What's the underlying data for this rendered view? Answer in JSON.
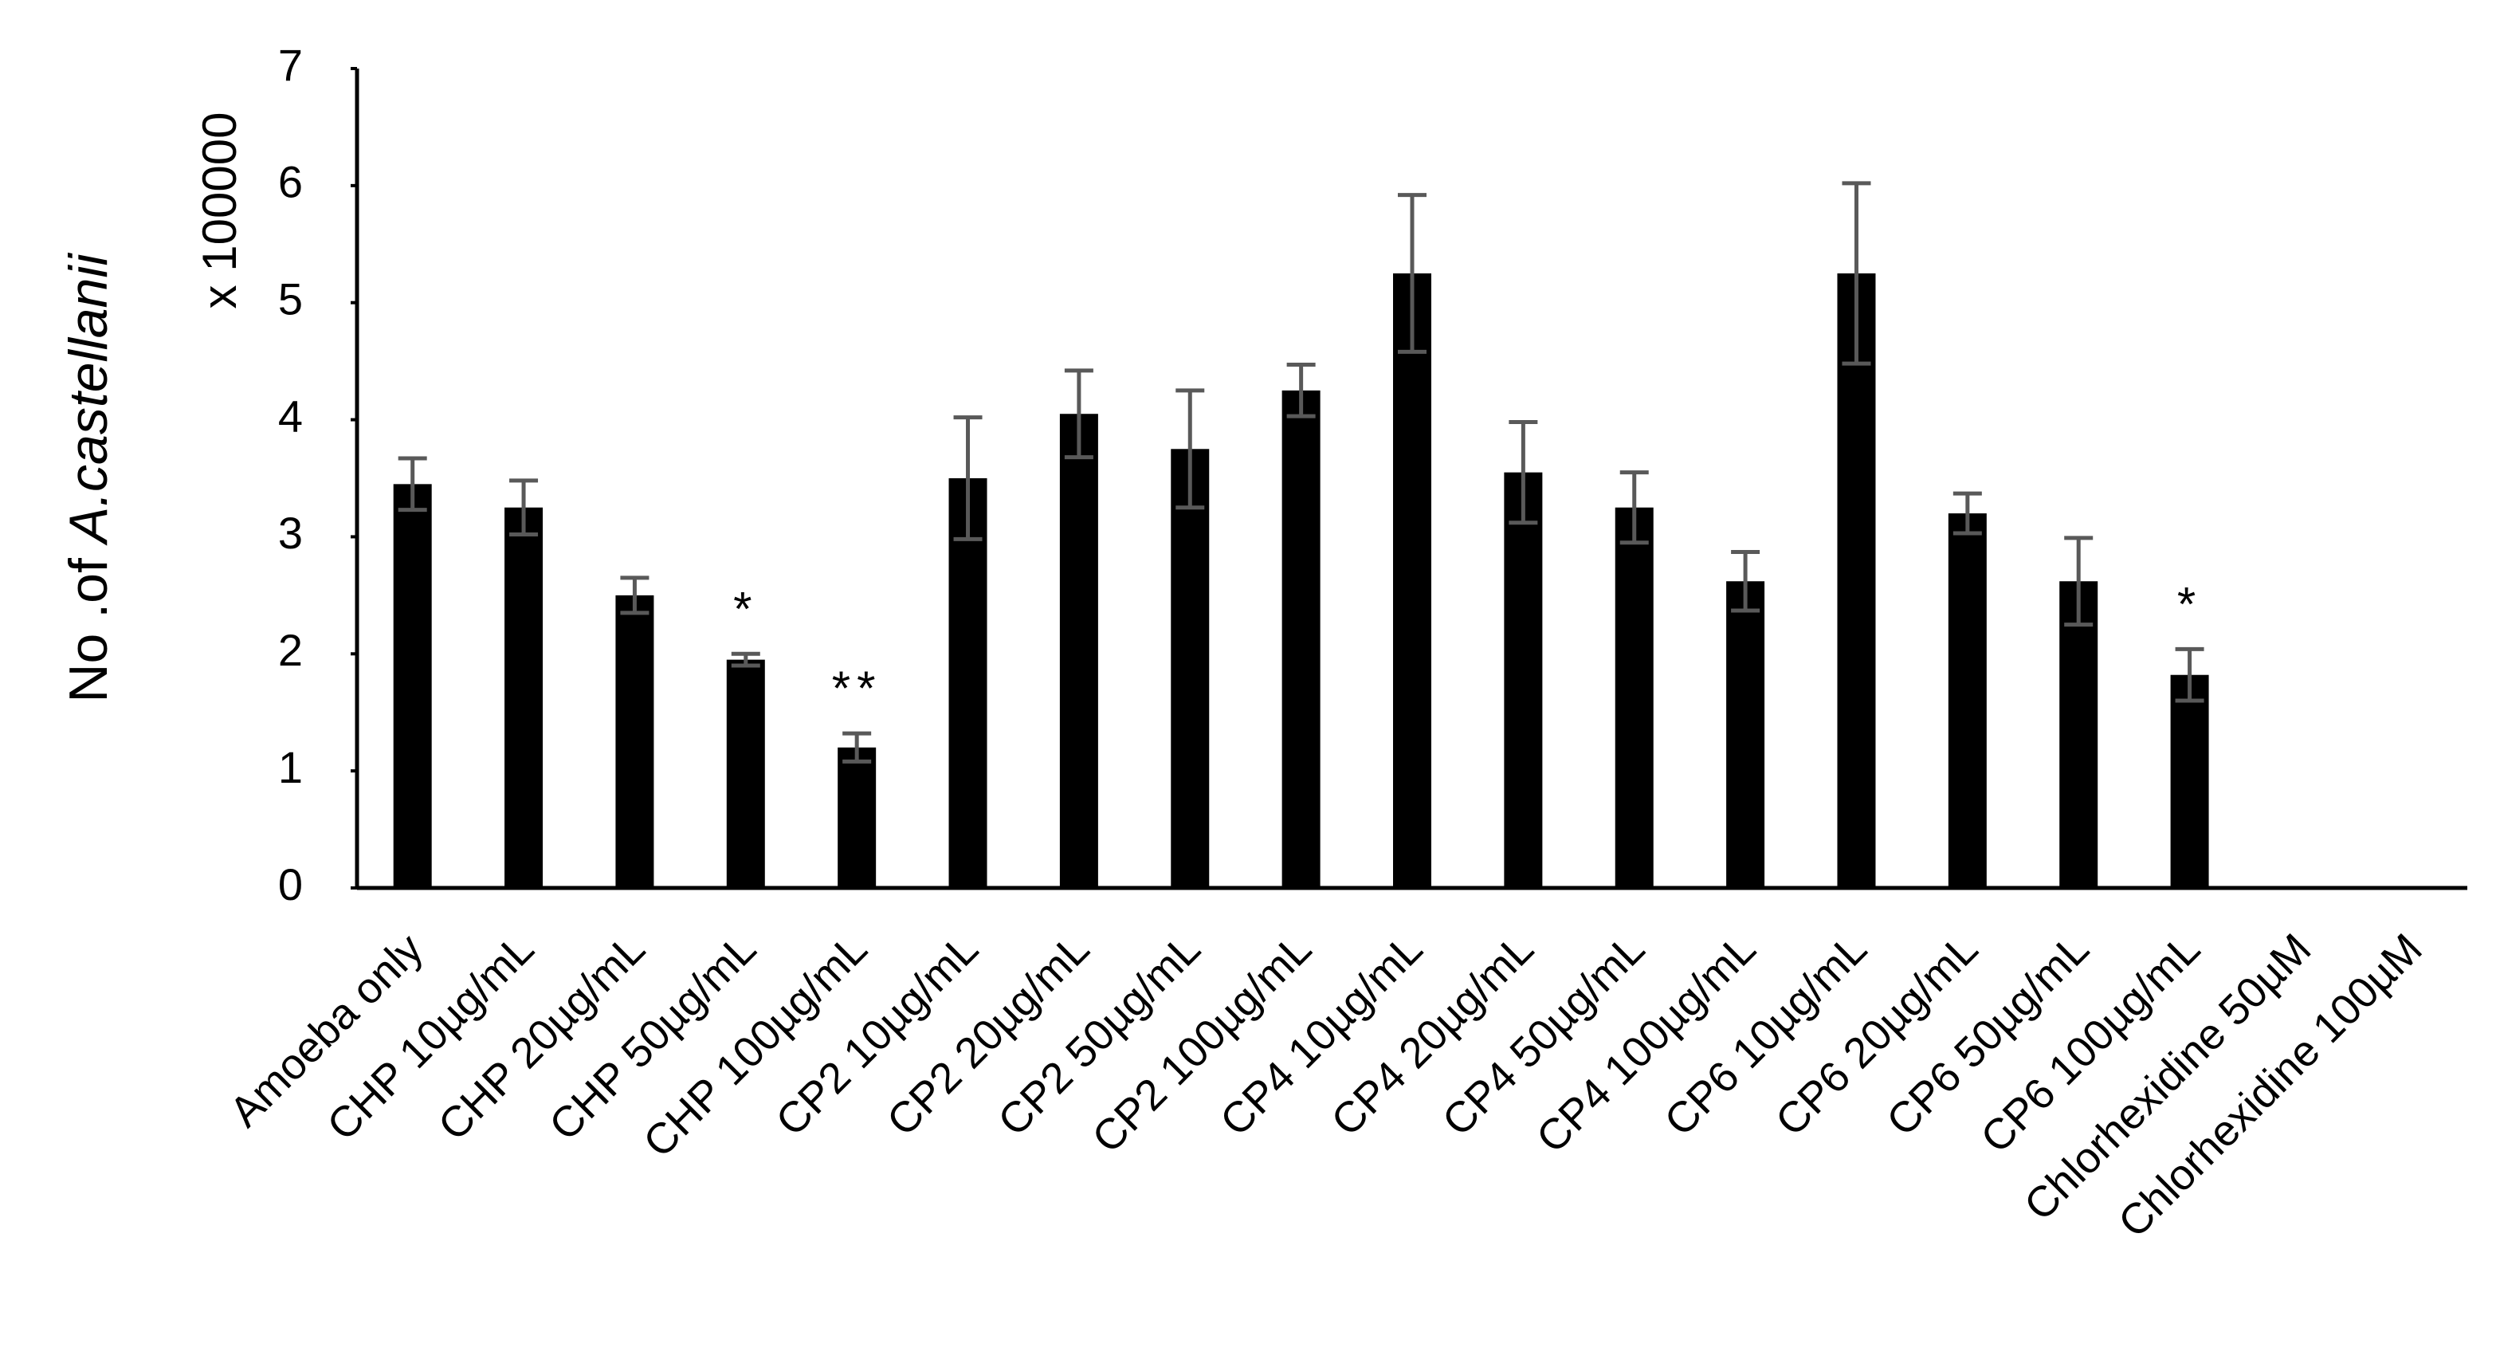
{
  "chart_data": {
    "type": "bar",
    "ylabel": {
      "prefix": "No .of ",
      "italic": "A.castellanii"
    },
    "yunit": "x 100000",
    "categories": [
      "Amoeba only",
      "CHP 10µg/mL",
      "CHP 20µg/mL",
      "CHP 50µg/mL",
      "CHP 100µg/mL",
      "CP2 10µg/mL",
      "CP2 20µg/mL",
      "CP2 50µg/mL",
      "CP2 100µg/mL",
      "CP4 10µg/mL",
      "CP4 20µg/mL",
      "CP4 50µg/mL",
      "CP4 100µg/mL",
      "CP6 10µg/mL",
      "CP6 20µg/mL",
      "CP6 50µg/mL",
      "CP6 100µg/mL",
      "Chlorhexidine 50µM",
      "Chlorhexidine 100µM"
    ],
    "values": [
      3.45,
      3.25,
      2.5,
      1.95,
      1.2,
      3.5,
      4.05,
      3.75,
      4.25,
      5.25,
      3.55,
      3.25,
      2.62,
      5.25,
      3.2,
      2.62,
      1.82,
      0,
      0
    ],
    "errors": [
      0.22,
      0.23,
      0.15,
      0.05,
      0.12,
      0.52,
      0.37,
      0.5,
      0.22,
      0.67,
      0.43,
      0.3,
      0.25,
      0.77,
      0.17,
      0.37,
      0.22,
      null,
      null
    ],
    "color": "#000000",
    "error_color": "#595959",
    "ylim": [
      0,
      7
    ],
    "yticks": [
      0,
      1,
      2,
      3,
      4,
      5,
      6,
      7
    ],
    "annotations": [
      {
        "category": "CHP 50µg/mL",
        "text": "*"
      },
      {
        "category": "CHP 100µg/mL",
        "text": "**"
      },
      {
        "category": "CP6 100µg/mL",
        "text": "*"
      }
    ]
  }
}
